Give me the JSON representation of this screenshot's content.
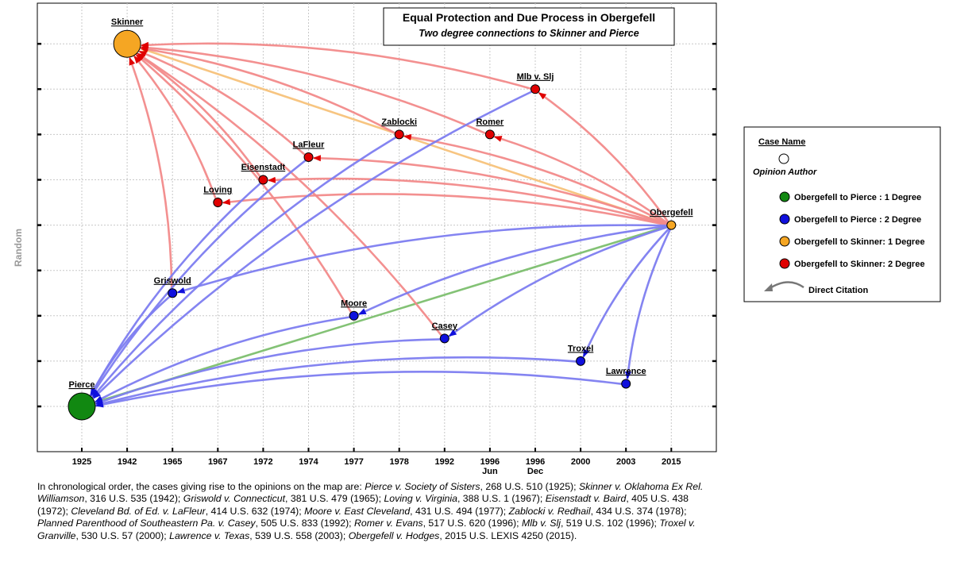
{
  "chart_data": {
    "type": "network",
    "y_axis_label": "Random",
    "title": "Equal Protection and Due Process in Obergefell",
    "subtitle": "Two degree connections to Skinner and Pierce",
    "x_ticks": [
      {
        "label": "1925",
        "sub": ""
      },
      {
        "label": "1942",
        "sub": ""
      },
      {
        "label": "1965",
        "sub": ""
      },
      {
        "label": "1967",
        "sub": ""
      },
      {
        "label": "1972",
        "sub": ""
      },
      {
        "label": "1974",
        "sub": ""
      },
      {
        "label": "1977",
        "sub": ""
      },
      {
        "label": "1978",
        "sub": ""
      },
      {
        "label": "1992",
        "sub": ""
      },
      {
        "label": "1996",
        "sub": "Jun"
      },
      {
        "label": "1996",
        "sub": "Dec"
      },
      {
        "label": "2000",
        "sub": ""
      },
      {
        "label": "2003",
        "sub": ""
      },
      {
        "label": "2015",
        "sub": ""
      }
    ],
    "nodes": [
      {
        "id": "pierce",
        "label": "Pierce",
        "slot": 0,
        "level": 1,
        "category": "green",
        "size": "large"
      },
      {
        "id": "skinner",
        "label": "Skinner",
        "slot": 1,
        "level": 9,
        "category": "orange",
        "size": "large"
      },
      {
        "id": "griswold",
        "label": "Griswold",
        "slot": 2,
        "level": 3.5,
        "category": "blue",
        "size": "small"
      },
      {
        "id": "loving",
        "label": "Loving",
        "slot": 3,
        "level": 5.5,
        "category": "red",
        "size": "small"
      },
      {
        "id": "eisenstadt",
        "label": "Eisenstadt",
        "slot": 4,
        "level": 6,
        "category": "red",
        "size": "small"
      },
      {
        "id": "lafleur",
        "label": "LaFleur",
        "slot": 5,
        "level": 6.5,
        "category": "red",
        "size": "small"
      },
      {
        "id": "moore",
        "label": "Moore",
        "slot": 6,
        "level": 3,
        "category": "blue",
        "size": "small"
      },
      {
        "id": "zablocki",
        "label": "Zablocki",
        "slot": 7,
        "level": 7,
        "category": "red",
        "size": "small"
      },
      {
        "id": "casey",
        "label": "Casey",
        "slot": 8,
        "level": 2.5,
        "category": "blue",
        "size": "small"
      },
      {
        "id": "romer",
        "label": "Romer",
        "slot": 9,
        "level": 7,
        "category": "red",
        "size": "small"
      },
      {
        "id": "mlb",
        "label": "Mlb v. Slj",
        "slot": 10,
        "level": 8,
        "category": "red",
        "size": "small"
      },
      {
        "id": "troxel",
        "label": "Troxel",
        "slot": 11,
        "level": 2,
        "category": "blue",
        "size": "small"
      },
      {
        "id": "lawrence",
        "label": "Lawrence",
        "slot": 12,
        "level": 1.5,
        "category": "blue",
        "size": "small"
      },
      {
        "id": "obergefell",
        "label": "Obergefell",
        "slot": 13,
        "level": 5,
        "category": "orange",
        "size": "small"
      }
    ],
    "edges": [
      {
        "from": "obergefell",
        "to": "pierce",
        "category": "green"
      },
      {
        "from": "obergefell",
        "to": "skinner",
        "category": "orange"
      },
      {
        "from": "obergefell",
        "to": "loving",
        "category": "red"
      },
      {
        "from": "obergefell",
        "to": "eisenstadt",
        "category": "red"
      },
      {
        "from": "obergefell",
        "to": "lafleur",
        "category": "red"
      },
      {
        "from": "obergefell",
        "to": "zablocki",
        "category": "red"
      },
      {
        "from": "obergefell",
        "to": "romer",
        "category": "red"
      },
      {
        "from": "obergefell",
        "to": "mlb",
        "category": "red"
      },
      {
        "from": "loving",
        "to": "skinner",
        "category": "red"
      },
      {
        "from": "eisenstadt",
        "to": "skinner",
        "category": "red"
      },
      {
        "from": "lafleur",
        "to": "skinner",
        "category": "red"
      },
      {
        "from": "zablocki",
        "to": "skinner",
        "category": "red"
      },
      {
        "from": "romer",
        "to": "skinner",
        "category": "red"
      },
      {
        "from": "mlb",
        "to": "skinner",
        "category": "red"
      },
      {
        "from": "griswold",
        "to": "skinner",
        "category": "red"
      },
      {
        "from": "moore",
        "to": "skinner",
        "category": "red"
      },
      {
        "from": "casey",
        "to": "skinner",
        "category": "red"
      },
      {
        "from": "obergefell",
        "to": "griswold",
        "category": "blue"
      },
      {
        "from": "obergefell",
        "to": "moore",
        "category": "blue"
      },
      {
        "from": "obergefell",
        "to": "casey",
        "category": "blue"
      },
      {
        "from": "obergefell",
        "to": "troxel",
        "category": "blue"
      },
      {
        "from": "obergefell",
        "to": "lawrence",
        "category": "blue"
      },
      {
        "from": "griswold",
        "to": "pierce",
        "category": "blue"
      },
      {
        "from": "moore",
        "to": "pierce",
        "category": "blue"
      },
      {
        "from": "casey",
        "to": "pierce",
        "category": "blue"
      },
      {
        "from": "troxel",
        "to": "pierce",
        "category": "blue"
      },
      {
        "from": "lawrence",
        "to": "pierce",
        "category": "blue"
      },
      {
        "from": "zablocki",
        "to": "pierce",
        "category": "blue"
      },
      {
        "from": "mlb",
        "to": "pierce",
        "category": "blue"
      },
      {
        "from": "lafleur",
        "to": "pierce",
        "category": "blue"
      },
      {
        "from": "eisenstadt",
        "to": "pierce",
        "category": "blue"
      }
    ],
    "colors": {
      "green": "#118811",
      "blue": "#1010dd",
      "orange": "#f5a623",
      "red": "#e00000",
      "edge_green": "#7cbf6e",
      "edge_blue": "#7d7df0",
      "edge_orange": "#f7c27a",
      "edge_red": "#f28a8a"
    },
    "legend": {
      "position": "right",
      "title": "Case Name",
      "author": "Opinion Author",
      "items": [
        {
          "category": "green",
          "label": "Obergefell to Pierce : 1 Degree"
        },
        {
          "category": "blue",
          "label": "Obergefell to Pierce : 2 Degree"
        },
        {
          "category": "orange",
          "label": "Obergefell to Skinner: 1 Degree"
        },
        {
          "category": "red",
          "label": "Obergefell to Skinner: 2 Degree"
        }
      ],
      "citation": "Direct Citation"
    },
    "grid": true
  },
  "caption": {
    "intro": "In chronological order, the cases giving rise to the opinions on the map are:",
    "cites": [
      {
        "case": "Pierce v. Society of Sisters",
        "cite": ", 268 U.S. 510 (1925);"
      },
      {
        "case": "Skinner v. Oklahoma Ex Rel. Williamson",
        "cite": ", 316 U.S. 535 (1942);"
      },
      {
        "case": "Griswold v. Connecticut",
        "cite": ", 381 U.S. 479 (1965);"
      },
      {
        "case": "Loving v. Virginia",
        "cite": ", 388 U.S. 1 (1967);"
      },
      {
        "case": "Eisenstadt v. Baird",
        "cite": ", 405 U.S. 438 (1972);"
      },
      {
        "case": "Cleveland Bd. of Ed. v. LaFleur",
        "cite": ", 414 U.S. 632 (1974);"
      },
      {
        "case": "Moore v. East Cleveland",
        "cite": ", 431 U.S. 494 (1977);"
      },
      {
        "case": "Zablocki v. Redhail",
        "cite": ", 434 U.S. 374 (1978);"
      },
      {
        "case": "Planned Parenthood of Southeastern Pa. v. Casey",
        "cite": ", 505 U.S. 833 (1992);"
      },
      {
        "case": "Romer v. Evans",
        "cite": ", 517 U.S. 620 (1996);"
      },
      {
        "case": "Mlb v. Slj",
        "cite": ", 519 U.S. 102 (1996);"
      },
      {
        "case": "Troxel v. Granville",
        "cite": ", 530 U.S. 57 (2000);"
      },
      {
        "case": "Lawrence v. Texas",
        "cite": ", 539 U.S. 558 (2003);"
      },
      {
        "case": "Obergefell v. Hodges",
        "cite": ", 2015 U.S. LEXIS 4250 (2015)."
      }
    ]
  }
}
